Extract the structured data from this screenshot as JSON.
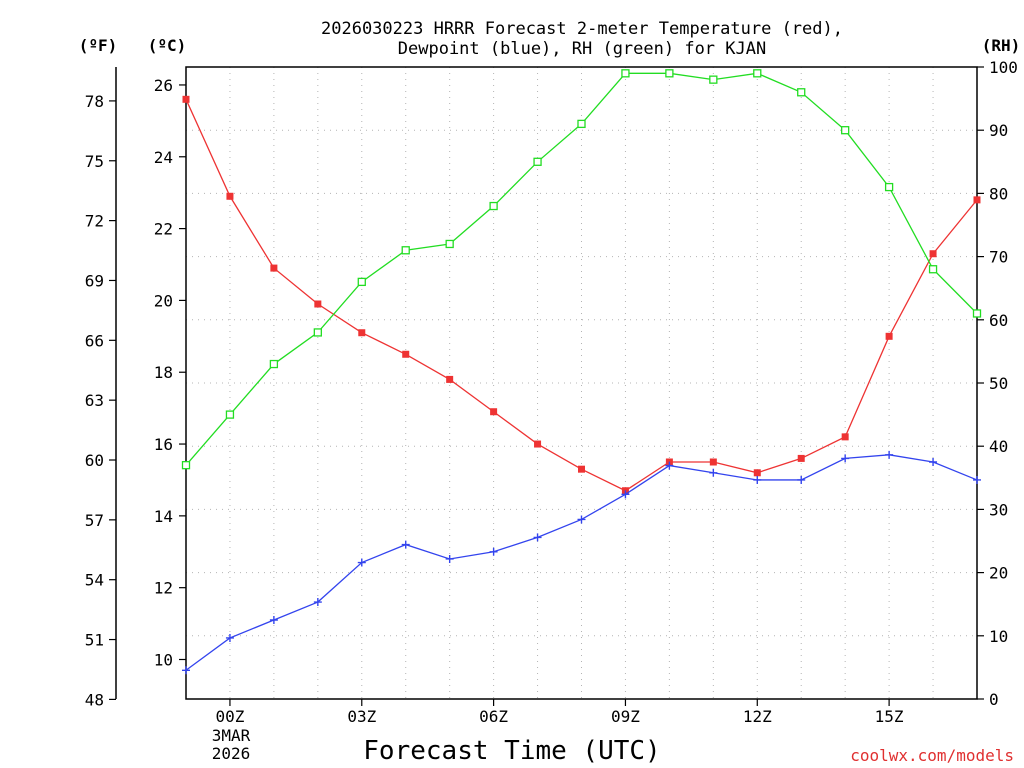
{
  "chart_data": {
    "type": "line",
    "title_line1": "2026030223 HRRR Forecast 2-meter Temperature (red),",
    "title_line2": "Dewpoint (blue), RH (green) for KJAN",
    "xlabel": "Forecast Time (UTC)",
    "credit": "coolwx.com/models",
    "units": {
      "fahrenheit": "(ºF)",
      "celsius": "(ºC)",
      "rh": "(RH)"
    },
    "x_date_label": [
      "3MAR",
      "2026"
    ],
    "x_range_hours": [
      -1,
      17
    ],
    "x_ticks": [
      {
        "hour": 0,
        "label": "00Z"
      },
      {
        "hour": 3,
        "label": "03Z"
      },
      {
        "hour": 6,
        "label": "06Z"
      },
      {
        "hour": 9,
        "label": "09Z"
      },
      {
        "hour": 12,
        "label": "12Z"
      },
      {
        "hour": 15,
        "label": "15Z"
      }
    ],
    "celsius_axis": {
      "range": [
        8.9,
        26.5
      ],
      "ticks": [
        10,
        12,
        14,
        16,
        18,
        20,
        22,
        24,
        26
      ]
    },
    "fahrenheit_axis": {
      "ticks": [
        48,
        51,
        54,
        57,
        60,
        63,
        66,
        69,
        72,
        75,
        78
      ]
    },
    "rh_axis": {
      "range": [
        0,
        100
      ],
      "ticks": [
        0,
        10,
        20,
        30,
        40,
        50,
        60,
        70,
        80,
        90,
        100
      ]
    },
    "x": [
      -1,
      0,
      1,
      2,
      3,
      4,
      5,
      6,
      7,
      8,
      9,
      10,
      11,
      12,
      13,
      14,
      15,
      16,
      17
    ],
    "series": [
      {
        "name": "Temperature",
        "units": "C",
        "color": "#ee3333",
        "marker": "filled-square",
        "values": [
          25.6,
          22.9,
          20.9,
          19.9,
          19.1,
          18.5,
          17.8,
          16.9,
          16.0,
          15.3,
          14.7,
          15.5,
          15.5,
          15.2,
          15.6,
          16.2,
          19.0,
          21.3,
          22.8
        ]
      },
      {
        "name": "Dewpoint",
        "units": "C",
        "color": "#3344ee",
        "marker": "plus",
        "values": [
          9.7,
          10.6,
          11.1,
          11.6,
          12.7,
          13.2,
          12.8,
          13.0,
          13.4,
          13.9,
          14.6,
          15.4,
          15.2,
          15.0,
          15.0,
          15.6,
          15.7,
          15.5,
          15.0
        ]
      },
      {
        "name": "RH",
        "units": "%",
        "color": "#22dd22",
        "marker": "open-square",
        "values": [
          37,
          45,
          53,
          58,
          66,
          71,
          72,
          78,
          85,
          91,
          99,
          99,
          98,
          99,
          96,
          90,
          81,
          68,
          61
        ]
      }
    ]
  }
}
